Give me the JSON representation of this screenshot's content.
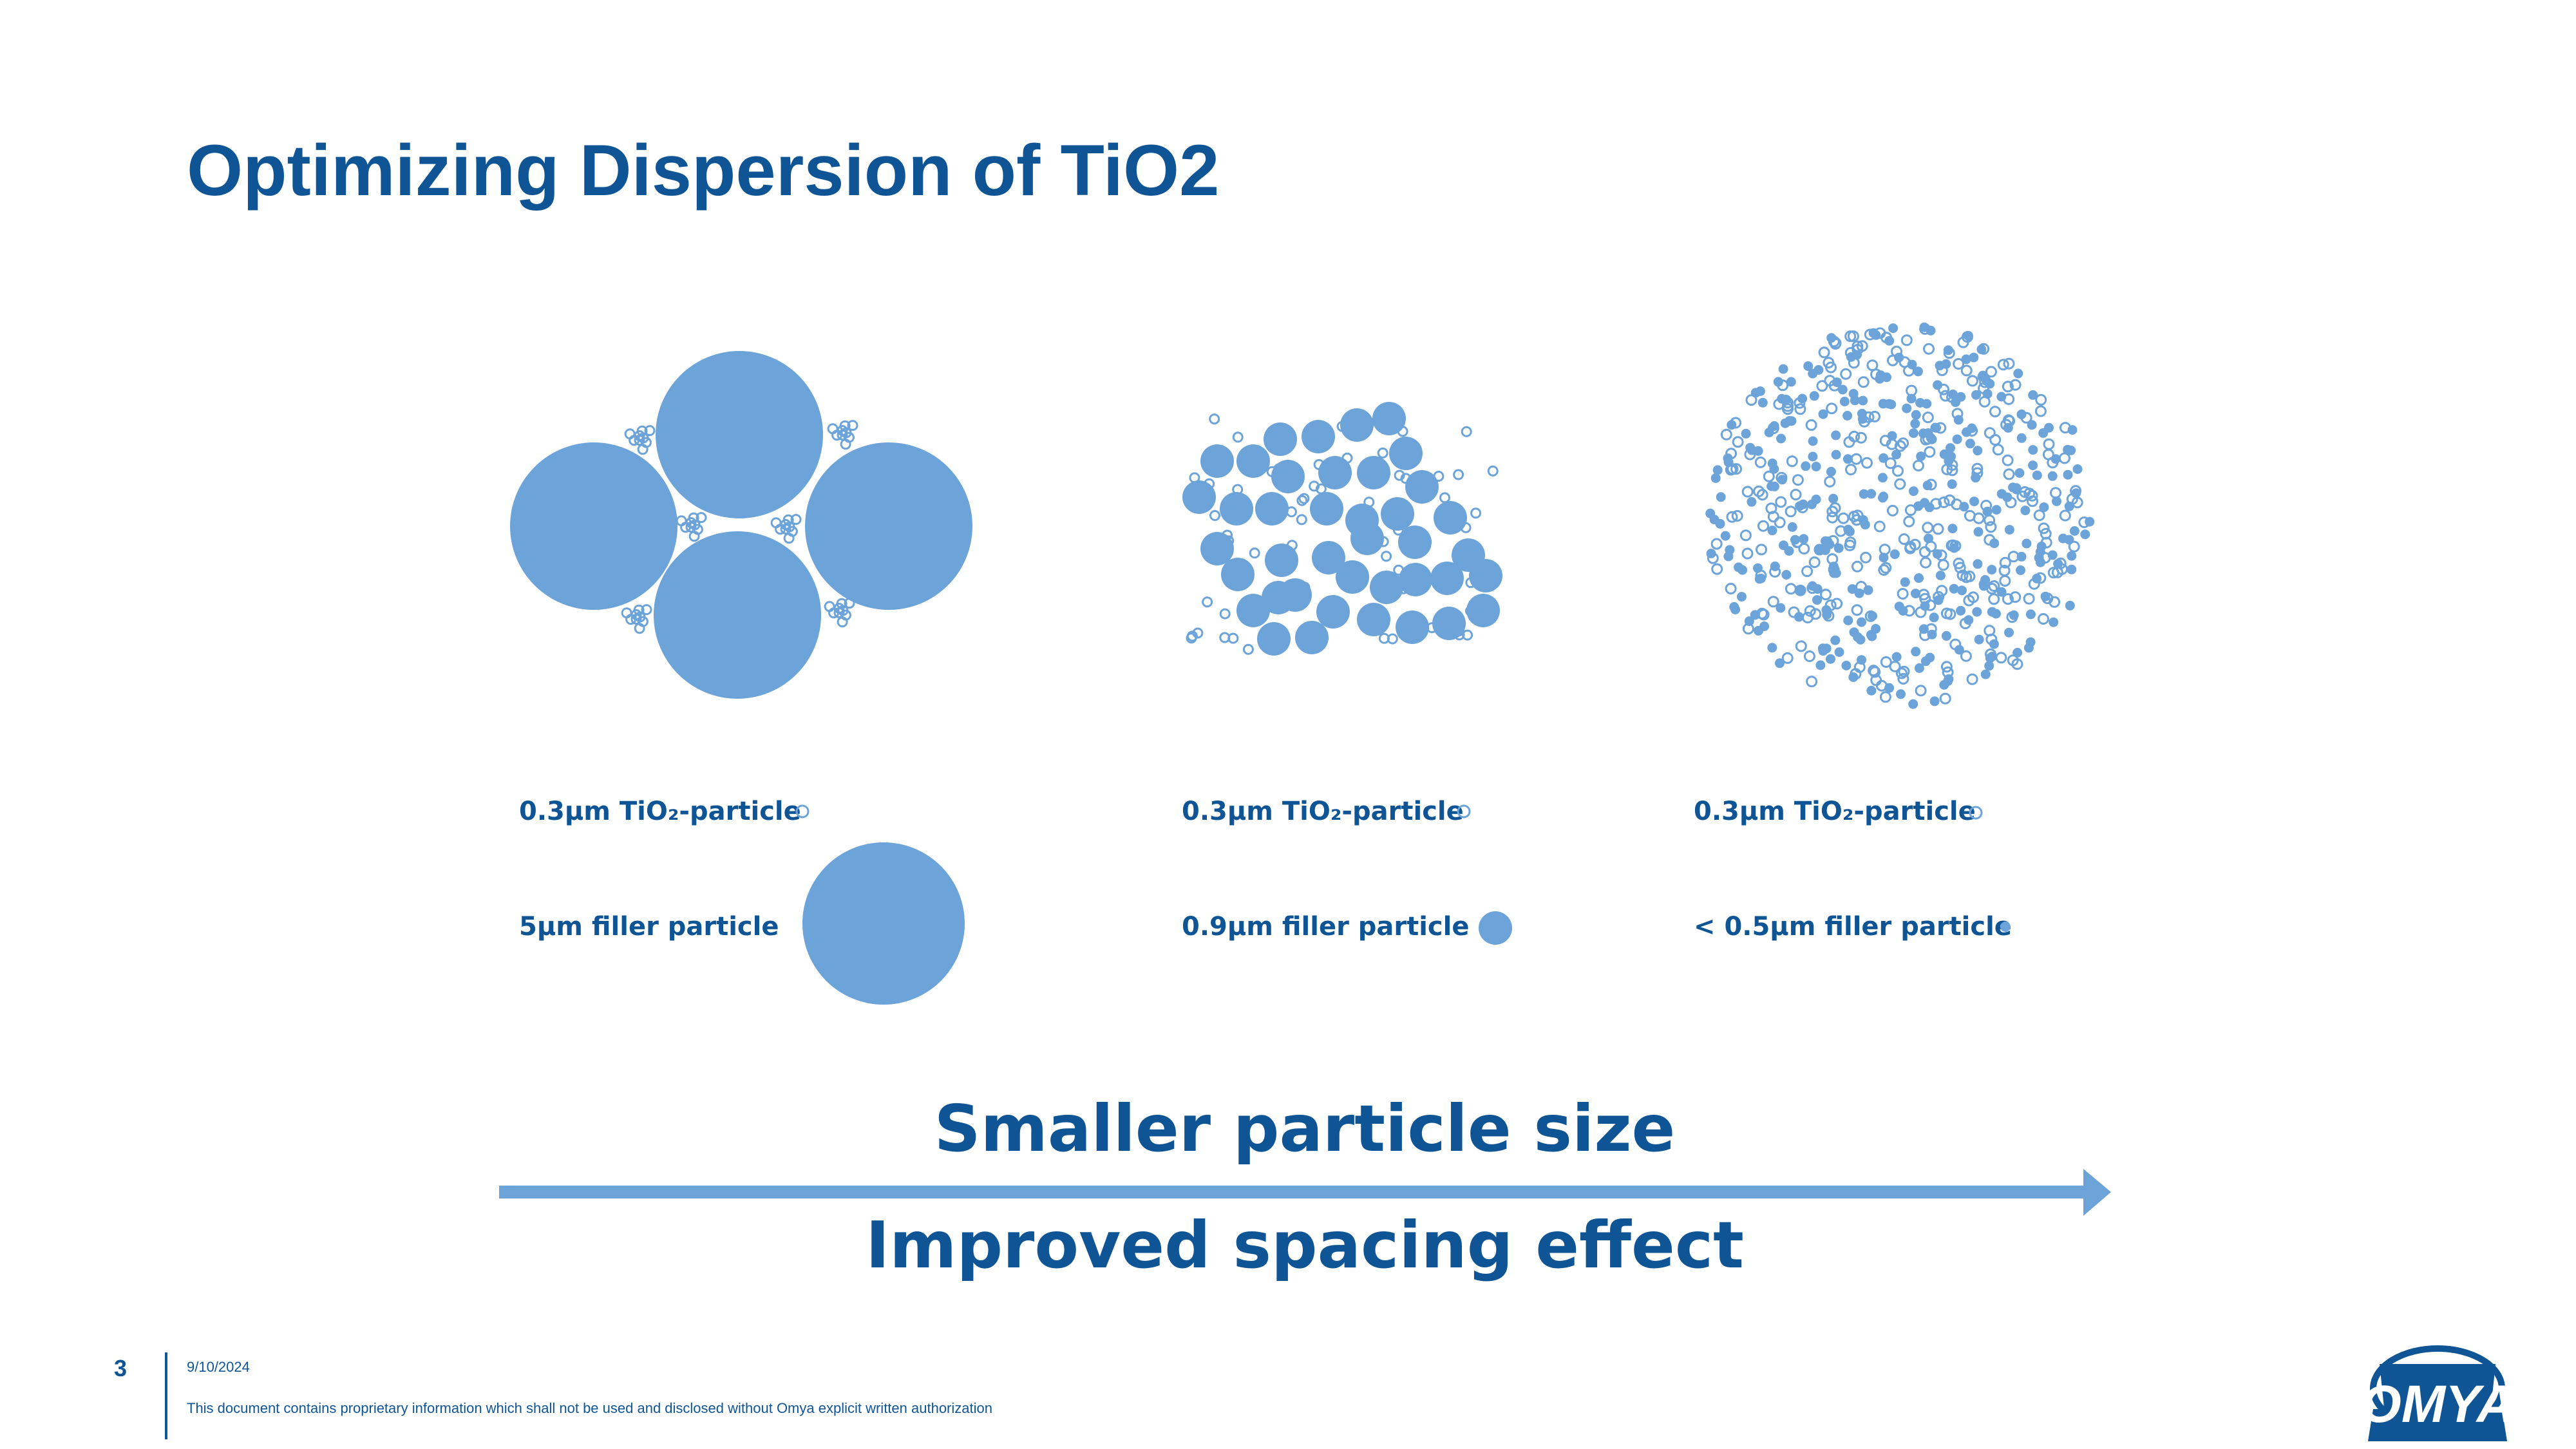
{
  "slide": {
    "title": "Optimizing Dispersion of TiO2",
    "page_number": "3",
    "date": "9/10/2024",
    "disclaimer": "This document contains proprietary information which shall not be used and disclosed without Omya explicit written authorization",
    "logo_text": "OMYA"
  },
  "panels": [
    {
      "tio2_label": "0.3μm TiO₂-particle",
      "filler_label": "5μm filler particle"
    },
    {
      "tio2_label": "0.3μm TiO₂-particle",
      "filler_label": "0.9μm filler particle"
    },
    {
      "tio2_label": "0.3μm TiO₂-particle",
      "filler_label": "< 0.5μm filler particle"
    }
  ],
  "arrow": {
    "top_text": "Smaller particle size",
    "bottom_text": "Improved spacing effect"
  },
  "colors": {
    "brand_blue": "#0f5596",
    "particle_blue": "#6ca3d9"
  }
}
